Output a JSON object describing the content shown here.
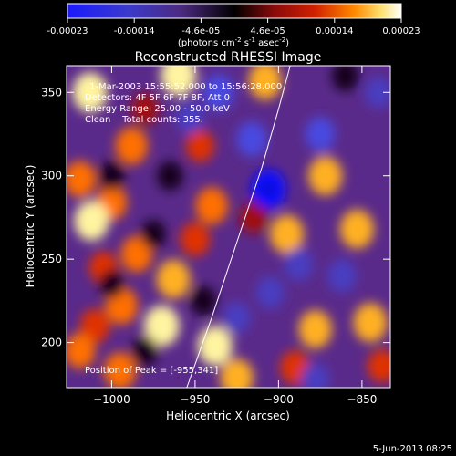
{
  "colorbar": {
    "tick_labels": [
      "-0.00023",
      "-0.00014",
      "-4.6e-05",
      "4.6e-05",
      "0.00014",
      "0.00023"
    ],
    "unit_label_prefix": "(photons cm",
    "unit_sup1": "-2",
    "unit_mid": " s",
    "unit_sup2": "-1",
    "unit_mid2": " asec",
    "unit_sup3": "-2",
    "unit_suffix": ")"
  },
  "chart_data": {
    "type": "heatmap",
    "title": "Reconstructed RHESSI Image",
    "xlabel": "Heliocentric X (arcsec)",
    "ylabel": "Heliocentric Y (arcsec)",
    "xlim": [
      -1027,
      -833
    ],
    "ylim": [
      173,
      366
    ],
    "x_ticks": [
      -1000,
      -950,
      -900,
      -850
    ],
    "x_tick_labels": [
      "−1000",
      "−950",
      "−900",
      "−850"
    ],
    "y_ticks": [
      200,
      250,
      300,
      350
    ],
    "y_tick_labels": [
      "200",
      "250",
      "300",
      "350"
    ],
    "annotations": [
      "1-Mar-2003 15:55:52.000 to 15:56:28.000",
      "Detectors: 4F 5F 6F 7F 8F, Att 0",
      "Energy Range: 25.00 - 50.0 keV",
      "Clean    Total counts: 355.",
      "Position of Peak = [-955,341]"
    ],
    "limb_curve": [
      [
        -955,
        173
      ],
      [
        -940,
        215
      ],
      [
        -925,
        260
      ],
      [
        -910,
        305
      ],
      [
        -900,
        340
      ],
      [
        -893,
        366
      ]
    ],
    "blobs": [
      {
        "x": -1013,
        "y": 350,
        "level": 0.9
      },
      {
        "x": -960,
        "y": 360,
        "level": 0.95
      },
      {
        "x": -908,
        "y": 357,
        "level": 0.8
      },
      {
        "x": -988,
        "y": 318,
        "level": 0.75
      },
      {
        "x": -1019,
        "y": 298,
        "level": 0.7
      },
      {
        "x": -1000,
        "y": 284,
        "level": 0.65
      },
      {
        "x": -940,
        "y": 282,
        "level": 0.75
      },
      {
        "x": -950,
        "y": 262,
        "level": 0.6
      },
      {
        "x": -1012,
        "y": 273,
        "level": 0.9
      },
      {
        "x": -985,
        "y": 253,
        "level": 0.7
      },
      {
        "x": -963,
        "y": 238,
        "level": 0.85
      },
      {
        "x": -994,
        "y": 222,
        "level": 0.75
      },
      {
        "x": -1010,
        "y": 210,
        "level": 0.6
      },
      {
        "x": -970,
        "y": 210,
        "level": 0.95
      },
      {
        "x": -1019,
        "y": 195,
        "level": 0.65
      },
      {
        "x": -938,
        "y": 198,
        "level": 0.9
      },
      {
        "x": -995,
        "y": 183,
        "level": 0.75
      },
      {
        "x": -925,
        "y": 179,
        "level": 0.8
      },
      {
        "x": -895,
        "y": 265,
        "level": 0.85
      },
      {
        "x": -872,
        "y": 300,
        "level": 0.85
      },
      {
        "x": -853,
        "y": 268,
        "level": 0.85
      },
      {
        "x": -878,
        "y": 208,
        "level": 0.8
      },
      {
        "x": -845,
        "y": 212,
        "level": 0.85
      },
      {
        "x": -890,
        "y": 185,
        "level": 0.6
      },
      {
        "x": -838,
        "y": 186,
        "level": 0.55
      },
      {
        "x": -980,
        "y": 340,
        "level": 0.45
      },
      {
        "x": -947,
        "y": 318,
        "level": 0.5
      },
      {
        "x": -915,
        "y": 275,
        "level": 0.45
      },
      {
        "x": -1005,
        "y": 245,
        "level": 0.5
      },
      {
        "x": -906,
        "y": 292,
        "level": -0.9
      },
      {
        "x": -936,
        "y": 350,
        "level": -0.7
      },
      {
        "x": -916,
        "y": 322,
        "level": -0.65
      },
      {
        "x": -875,
        "y": 325,
        "level": -0.6
      },
      {
        "x": -953,
        "y": 335,
        "level": -0.5
      },
      {
        "x": -888,
        "y": 247,
        "level": -0.55
      },
      {
        "x": -862,
        "y": 240,
        "level": -0.55
      },
      {
        "x": -905,
        "y": 230,
        "level": -0.5
      },
      {
        "x": -878,
        "y": 178,
        "level": -0.5
      },
      {
        "x": -925,
        "y": 215,
        "level": -0.45
      },
      {
        "x": -1000,
        "y": 300,
        "level": -0.35
      },
      {
        "x": -965,
        "y": 300,
        "level": -0.35
      },
      {
        "x": -975,
        "y": 265,
        "level": -0.3
      },
      {
        "x": -1000,
        "y": 235,
        "level": -0.3
      },
      {
        "x": -980,
        "y": 195,
        "level": -0.35
      },
      {
        "x": -945,
        "y": 225,
        "level": -0.35
      },
      {
        "x": -840,
        "y": 350,
        "level": -0.45
      },
      {
        "x": -860,
        "y": 360,
        "level": -0.4
      }
    ]
  },
  "footer": {
    "timestamp": "5-Jun-2013 08:25"
  }
}
